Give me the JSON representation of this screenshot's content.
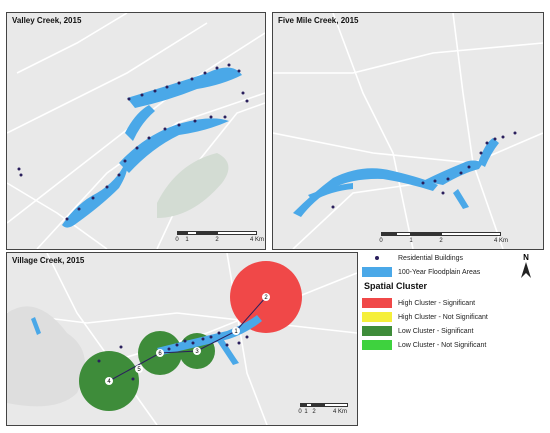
{
  "panels": {
    "valley": {
      "title": "Valley Creek, 2015",
      "scale": [
        "0",
        "1",
        "2",
        "4 Km"
      ]
    },
    "fivemile": {
      "title": "Five Mile Creek, 2015",
      "scale": [
        "0",
        "1",
        "2",
        "4 Km"
      ]
    },
    "village": {
      "title": "Village Creek, 2015",
      "scale": [
        "0",
        "1",
        "2",
        "4 Km"
      ],
      "clusters": [
        {
          "id": "2",
          "type": "High Cluster - Significant"
        },
        {
          "id": "1",
          "type": "High Cluster - Significant"
        },
        {
          "id": "3",
          "type": "Low Cluster - Significant"
        },
        {
          "id": "6",
          "type": "Low Cluster - Significant"
        },
        {
          "id": "5",
          "type": "Low Cluster - Significant"
        },
        {
          "id": "4",
          "type": "Low Cluster - Significant"
        }
      ]
    }
  },
  "legend": {
    "residential": "Residential Buildings",
    "floodplain": "100-Year Floodplain Areas",
    "spatial_cluster": "Spatial Cluster",
    "items": [
      {
        "label": "High Cluster - Significant",
        "color": "#f04848"
      },
      {
        "label": "High Cluster - Not Significant",
        "color": "#f5ef3a"
      },
      {
        "label": "Low Cluster - Significant",
        "color": "#3e8c3a"
      },
      {
        "label": "Low Cluster - Not Significant",
        "color": "#3ed23e"
      }
    ]
  },
  "north": "N",
  "colors": {
    "flood": "#4aa8e8",
    "building": "#2a1f5c",
    "road": "#ffffff",
    "park": "#d3dcd3",
    "map_bg": "#e9e9e9"
  }
}
